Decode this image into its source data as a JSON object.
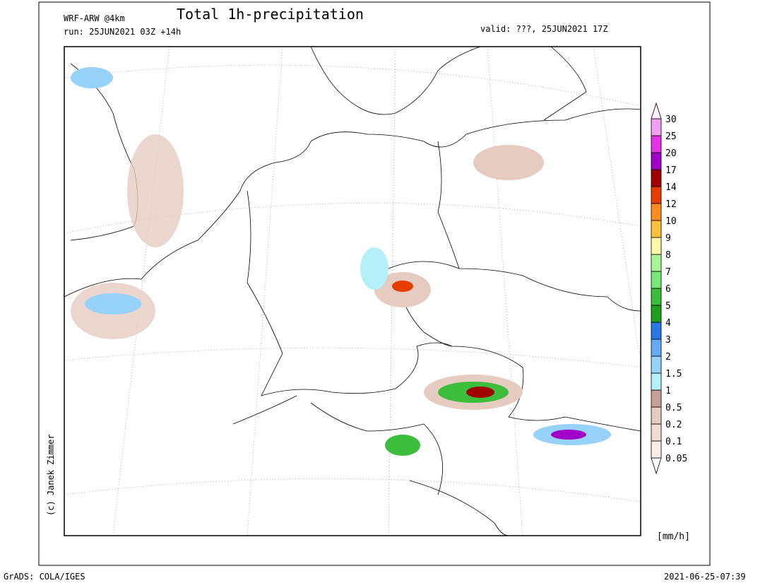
{
  "header": {
    "model": "WRF-ARW @4km",
    "title": "Total 1h-precipitation",
    "run": "run: 25JUN2021 03Z +14h",
    "valid": "valid: ???, 25JUN2021 17Z"
  },
  "legend": {
    "unit": "[mm/h]",
    "levels": [
      0.05,
      0.1,
      0.2,
      0.5,
      1,
      1.5,
      2,
      3,
      4,
      5,
      6,
      7,
      8,
      9,
      10,
      12,
      14,
      17,
      20,
      25,
      30
    ],
    "colors": [
      "#faeee6",
      "#f0dcd2",
      "#e6ccc0",
      "#c8a096",
      "#b4f0fa",
      "#96d2fa",
      "#64aaf5",
      "#2a78e6",
      "#1ea01e",
      "#3cbe3c",
      "#78e678",
      "#a8f596",
      "#fffaaa",
      "#ffc03c",
      "#ff8c1e",
      "#e63c00",
      "#a00000",
      "#a000c8",
      "#e632e6",
      "#f0a0f0",
      "#fff0ff"
    ]
  },
  "credit": "(c) Janek Zimmer",
  "footer": {
    "software": "GrADS: COLA/IGES",
    "timestamp": "2021-06-25-07:39"
  }
}
